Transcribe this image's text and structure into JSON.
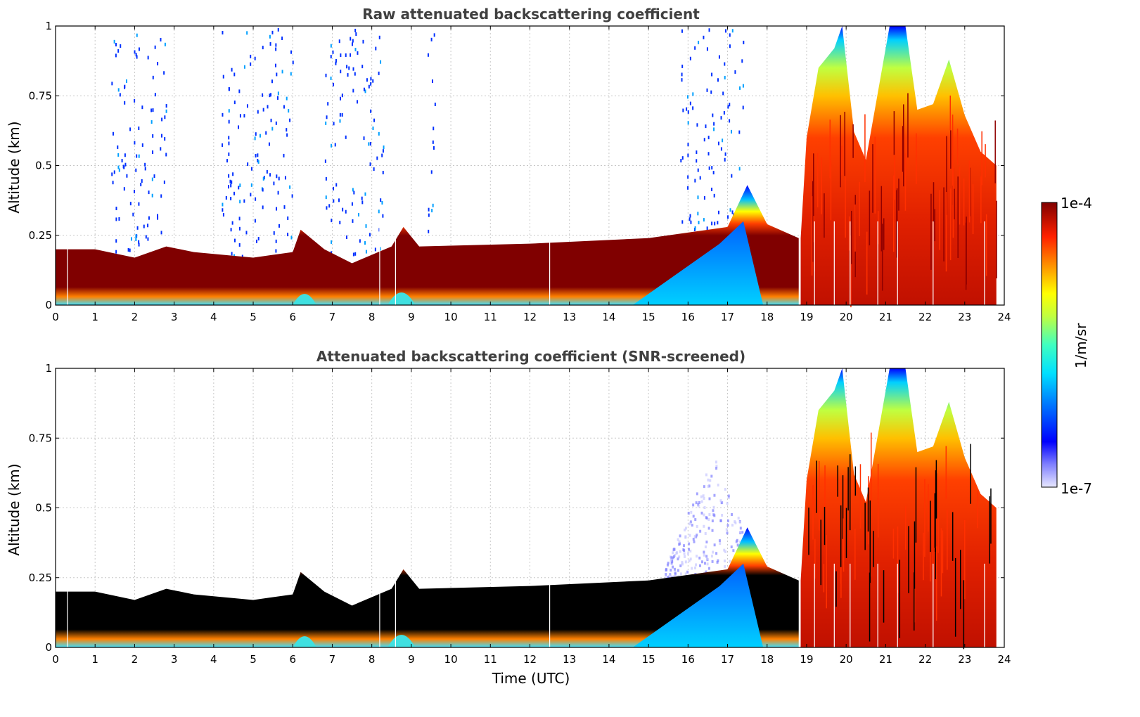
{
  "chart_data": [
    {
      "type": "heatmap",
      "title": "Raw attenuated backscattering coefficient",
      "ylabel": "Altitude (km)",
      "xlabel": "",
      "xlim": [
        0,
        24
      ],
      "ylim": [
        0,
        1
      ],
      "xticks": [
        "0",
        "1",
        "2",
        "3",
        "4",
        "5",
        "6",
        "7",
        "8",
        "9",
        "10",
        "11",
        "12",
        "13",
        "14",
        "15",
        "16",
        "17",
        "18",
        "19",
        "20",
        "21",
        "22",
        "23",
        "24"
      ],
      "yticks": [
        "0",
        "0.25",
        "0.5",
        "0.75",
        "1"
      ],
      "grid": true,
      "colormap": "jet",
      "color_range": [
        "1e-7",
        "1e-4"
      ],
      "color_units": "1/m/sr",
      "boundary_layer_top_km": [
        {
          "t": 0,
          "z": 0.2
        },
        {
          "t": 1,
          "z": 0.2
        },
        {
          "t": 2,
          "z": 0.17
        },
        {
          "t": 2.8,
          "z": 0.21
        },
        {
          "t": 3.5,
          "z": 0.19
        },
        {
          "t": 5,
          "z": 0.17
        },
        {
          "t": 6,
          "z": 0.19
        },
        {
          "t": 6.2,
          "z": 0.27
        },
        {
          "t": 6.8,
          "z": 0.2
        },
        {
          "t": 7.5,
          "z": 0.15
        },
        {
          "t": 8.5,
          "z": 0.21
        },
        {
          "t": 8.8,
          "z": 0.28
        },
        {
          "t": 9.2,
          "z": 0.21
        },
        {
          "t": 12,
          "z": 0.22
        },
        {
          "t": 15,
          "z": 0.24
        },
        {
          "t": 17,
          "z": 0.28
        },
        {
          "t": 17.5,
          "z": 0.43
        },
        {
          "t": 18,
          "z": 0.29
        },
        {
          "t": 18.8,
          "z": 0.24
        }
      ],
      "cloud_tops_km": [
        {
          "t": 19.0,
          "z": 0.6
        },
        {
          "t": 19.3,
          "z": 0.85
        },
        {
          "t": 19.7,
          "z": 0.92
        },
        {
          "t": 19.9,
          "z": 1.0
        },
        {
          "t": 20.2,
          "z": 0.62
        },
        {
          "t": 20.5,
          "z": 0.52
        },
        {
          "t": 21.1,
          "z": 1.0
        },
        {
          "t": 21.5,
          "z": 1.0
        },
        {
          "t": 21.8,
          "z": 0.7
        },
        {
          "t": 22.2,
          "z": 0.72
        },
        {
          "t": 22.6,
          "z": 0.88
        },
        {
          "t": 23.0,
          "z": 0.68
        },
        {
          "t": 23.4,
          "z": 0.55
        },
        {
          "t": 23.8,
          "z": 0.5
        }
      ],
      "noise_bands_h": [
        [
          1.4,
          2.8
        ],
        [
          4.2,
          6.0
        ],
        [
          6.8,
          8.3
        ],
        [
          9.4,
          9.6
        ],
        [
          15.8,
          17.4
        ]
      ]
    },
    {
      "type": "heatmap",
      "title": "Attenuated backscattering coefficient (SNR-screened)",
      "ylabel": "Altitude (km)",
      "xlabel": "Time (UTC)",
      "xlim": [
        0,
        24
      ],
      "ylim": [
        0,
        1
      ],
      "xticks": [
        "0",
        "1",
        "2",
        "3",
        "4",
        "5",
        "6",
        "7",
        "8",
        "9",
        "10",
        "11",
        "12",
        "13",
        "14",
        "15",
        "16",
        "17",
        "18",
        "19",
        "20",
        "21",
        "22",
        "23",
        "24"
      ],
      "yticks": [
        "0",
        "0.25",
        "0.5",
        "0.75",
        "1"
      ],
      "grid": true,
      "colormap": "jet",
      "color_range": [
        "1e-7",
        "1e-4"
      ],
      "color_units": "1/m/sr",
      "saturated_core_color": "#000000"
    }
  ],
  "colorbar": {
    "max_label": "1e-4",
    "min_label": "1e-7",
    "units_label": "1/m/sr"
  }
}
